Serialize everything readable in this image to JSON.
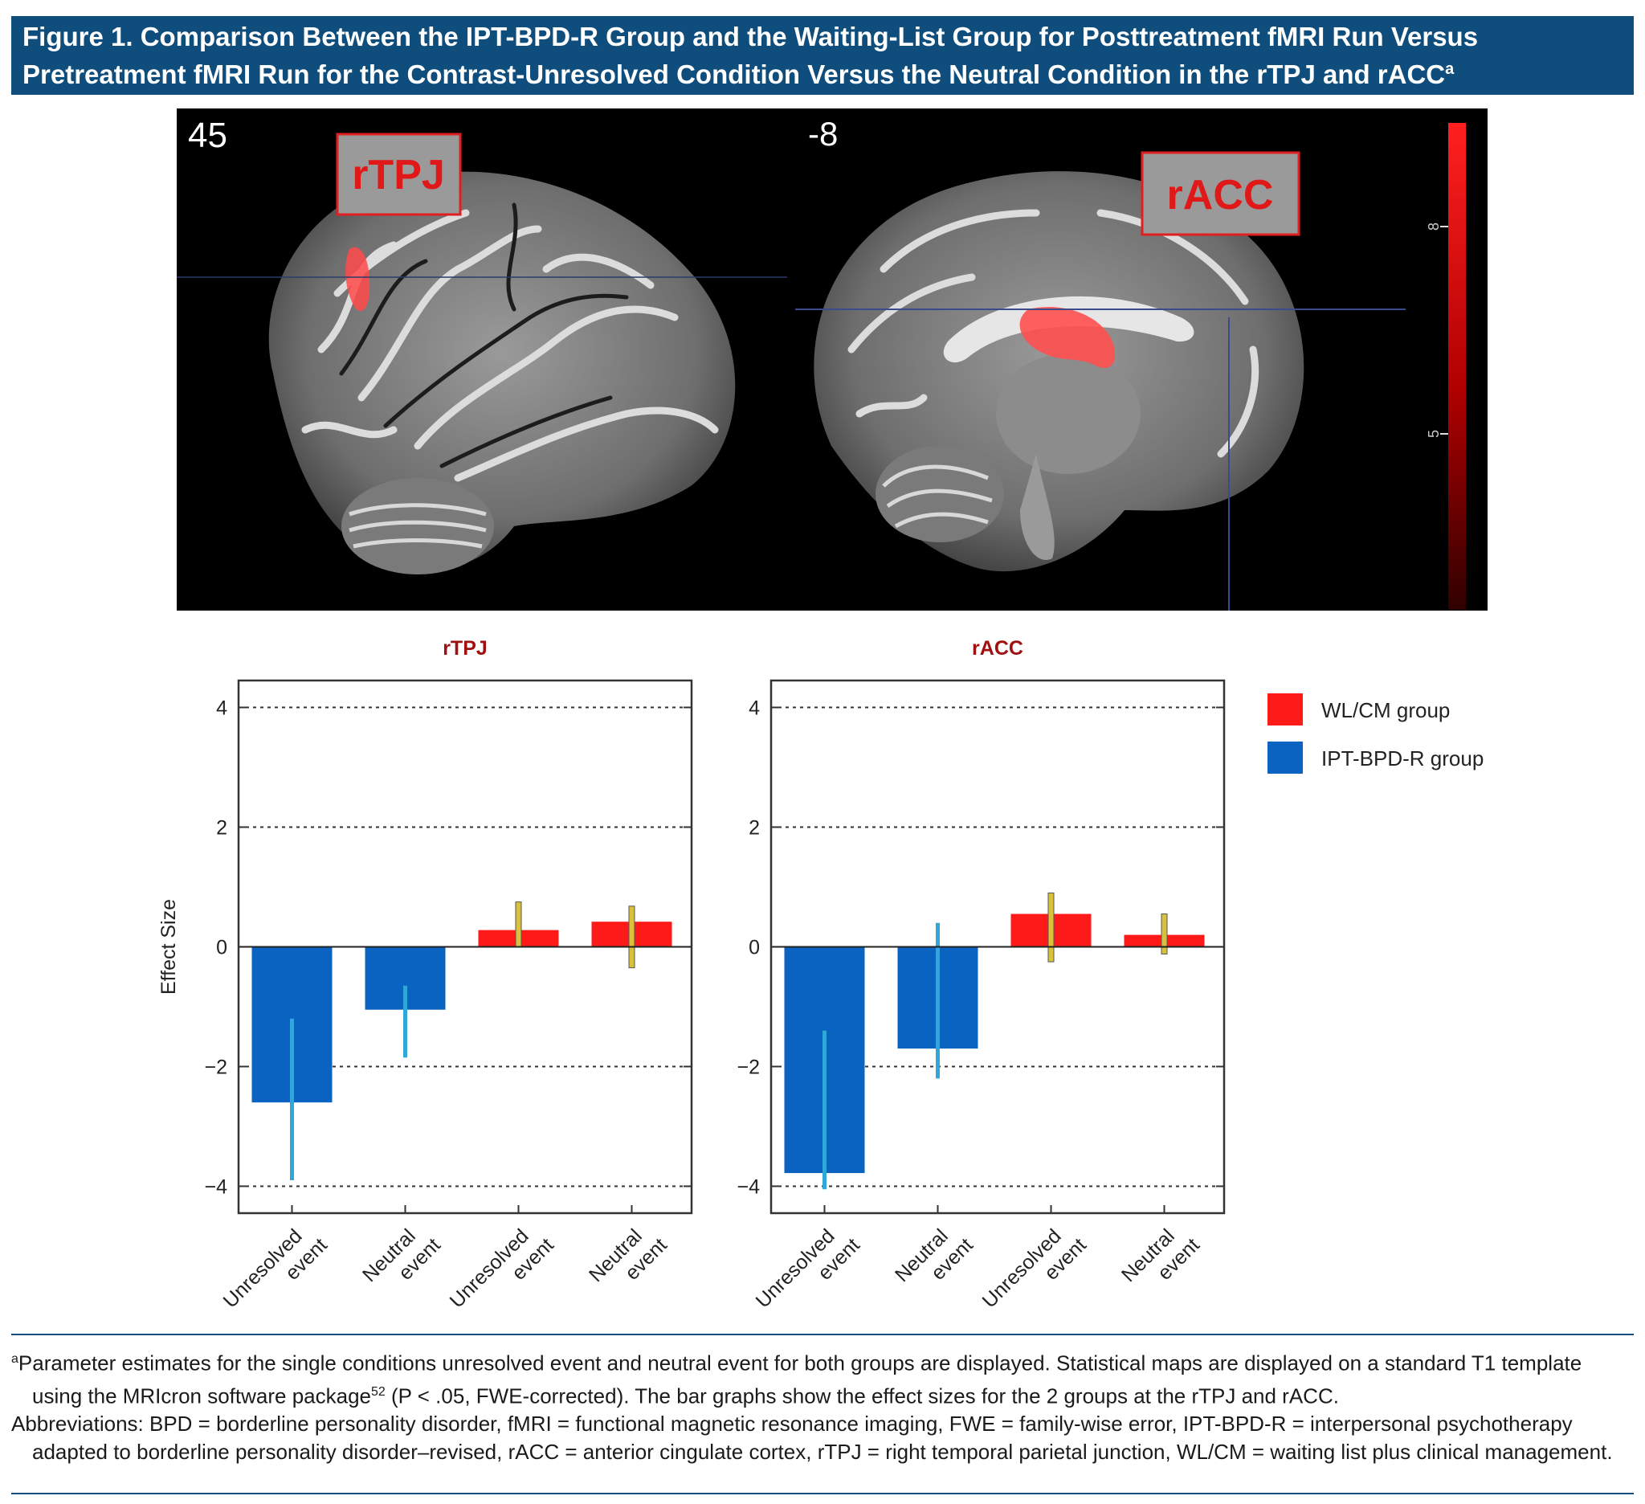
{
  "figure": {
    "title_line1": "Figure 1. Comparison Between the IPT-BPD-R Group and the Waiting-List Group for Posttreatment fMRI Run Versus",
    "title_line2": "Pretreatment fMRI Run for the Contrast-Unresolved Condition Versus the Neutral Condition in the rTPJ and rACC",
    "title_sup": "a"
  },
  "brain_images": {
    "left_slice": "45",
    "right_slice": "-8",
    "left_label": "rTPJ",
    "right_label": "rACC",
    "colorbar_tick_top": "8",
    "colorbar_tick_bottom": "5"
  },
  "colors": {
    "title_bar": "#0e4d7c",
    "wl_cm": "#ff1a1a",
    "ipt_bpd_r": "#0a63c0",
    "error_red_series": "#d9c23a",
    "error_blue_series": "#2fa7d8",
    "chart_title": "#a01010"
  },
  "legend": {
    "items": [
      {
        "label": "WL/CM group",
        "color": "#ff1a1a"
      },
      {
        "label": "IPT-BPD-R group",
        "color": "#0a63c0"
      }
    ]
  },
  "chart_data": [
    {
      "type": "bar",
      "title": "rTPJ",
      "ylabel": "Effect Size",
      "ylim": [
        -4.45,
        4.45
      ],
      "yticks": [
        4,
        2,
        0,
        -2,
        -4
      ],
      "ytick_labels": [
        "4",
        "2",
        "0",
        "−2",
        "−4"
      ],
      "grid": "dotted horizontal",
      "categories": [
        [
          "Unresolved",
          "event"
        ],
        [
          "Neutral",
          "event"
        ],
        [
          "Unresolved",
          "event"
        ],
        [
          "Neutral",
          "event"
        ]
      ],
      "bars": [
        {
          "series": "IPT-BPD-R group",
          "value": -2.6,
          "err_low": -3.9,
          "err_high": -1.2
        },
        {
          "series": "IPT-BPD-R group",
          "value": -1.05,
          "err_low": -1.85,
          "err_high": -0.65
        },
        {
          "series": "WL/CM group",
          "value": 0.28,
          "err_low": 0.0,
          "err_high": 0.75
        },
        {
          "series": "WL/CM group",
          "value": 0.42,
          "err_low": -0.35,
          "err_high": 0.68
        }
      ]
    },
    {
      "type": "bar",
      "title": "rACC",
      "ylabel": "",
      "ylim": [
        -4.45,
        4.45
      ],
      "yticks": [
        4,
        2,
        0,
        -2,
        -4
      ],
      "ytick_labels": [
        "4",
        "2",
        "0",
        "−2",
        "−4"
      ],
      "grid": "dotted horizontal",
      "categories": [
        [
          "Unresolved",
          "event"
        ],
        [
          "Neutral",
          "event"
        ],
        [
          "Unresolved",
          "event"
        ],
        [
          "Neutral",
          "event"
        ]
      ],
      "bars": [
        {
          "series": "IPT-BPD-R group",
          "value": -3.78,
          "err_low": -4.05,
          "err_high": -1.4
        },
        {
          "series": "IPT-BPD-R group",
          "value": -1.7,
          "err_low": -2.2,
          "err_high": 0.4
        },
        {
          "series": "WL/CM group",
          "value": 0.55,
          "err_low": -0.25,
          "err_high": 0.9
        },
        {
          "series": "WL/CM group",
          "value": 0.2,
          "err_low": -0.12,
          "err_high": 0.55
        }
      ]
    }
  ],
  "footnote": {
    "note_a_mark": "a",
    "note_a_text1": "Parameter estimates for the single conditions unresolved event and neutral event for both groups are displayed. Statistical maps are displayed on a standard T1 template using the MRIcron software package",
    "note_a_ref": "52",
    "note_a_text2": " (P < .05, FWE-corrected). The bar graphs show the effect sizes for the 2 groups at the rTPJ and rACC.",
    "abbreviations": "Abbreviations: BPD = borderline personality disorder, fMRI = functional magnetic resonance imaging, FWE = family-wise error, IPT-BPD-R = interpersonal psychotherapy adapted to borderline personality disorder–revised, rACC = anterior cingulate cortex, rTPJ = right temporal parietal junction, WL/CM = waiting list plus clinical management."
  }
}
